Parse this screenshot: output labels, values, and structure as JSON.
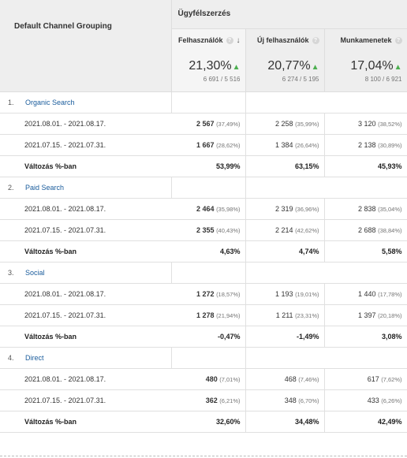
{
  "headers": {
    "dimension": "Default Channel Grouping",
    "group": "Ügyfélszerzés",
    "metrics": [
      "Felhasználók",
      "Új felhasználók",
      "Munkamenetek"
    ]
  },
  "summary": [
    {
      "pct": "21,30%",
      "detail": "6 691 / 5 516"
    },
    {
      "pct": "20,77%",
      "detail": "6 274 / 5 195"
    },
    {
      "pct": "17,04%",
      "detail": "8 100 / 6 921"
    }
  ],
  "groups": [
    {
      "num": "1.",
      "name": "Organic Search",
      "rows": [
        {
          "date": "2021.08.01. - 2021.08.17.",
          "m1": "2 567",
          "m1p": "(37,49%)",
          "m2": "2 258",
          "m2p": "(35,99%)",
          "m3": "3 120",
          "m3p": "(38,52%)"
        },
        {
          "date": "2021.07.15. - 2021.07.31.",
          "m1": "1 667",
          "m1p": "(28,62%)",
          "m2": "1 384",
          "m2p": "(26,64%)",
          "m3": "2 138",
          "m3p": "(30,89%)"
        }
      ],
      "change": {
        "label": "Változás %-ban",
        "m1": "53,99%",
        "m2": "63,15%",
        "m3": "45,93%"
      }
    },
    {
      "num": "2.",
      "name": "Paid Search",
      "rows": [
        {
          "date": "2021.08.01. - 2021.08.17.",
          "m1": "2 464",
          "m1p": "(35,98%)",
          "m2": "2 319",
          "m2p": "(36,96%)",
          "m3": "2 838",
          "m3p": "(35,04%)"
        },
        {
          "date": "2021.07.15. - 2021.07.31.",
          "m1": "2 355",
          "m1p": "(40,43%)",
          "m2": "2 214",
          "m2p": "(42,62%)",
          "m3": "2 688",
          "m3p": "(38,84%)"
        }
      ],
      "change": {
        "label": "Változás %-ban",
        "m1": "4,63%",
        "m2": "4,74%",
        "m3": "5,58%"
      }
    },
    {
      "num": "3.",
      "name": "Social",
      "rows": [
        {
          "date": "2021.08.01. - 2021.08.17.",
          "m1": "1 272",
          "m1p": "(18,57%)",
          "m2": "1 193",
          "m2p": "(19,01%)",
          "m3": "1 440",
          "m3p": "(17,78%)"
        },
        {
          "date": "2021.07.15. - 2021.07.31.",
          "m1": "1 278",
          "m1p": "(21,94%)",
          "m2": "1 211",
          "m2p": "(23,31%)",
          "m3": "1 397",
          "m3p": "(20,18%)"
        }
      ],
      "change": {
        "label": "Változás %-ban",
        "m1": "-0,47%",
        "m2": "-1,49%",
        "m3": "3,08%"
      }
    },
    {
      "num": "4.",
      "name": "Direct",
      "rows": [
        {
          "date": "2021.08.01. - 2021.08.17.",
          "m1": "480",
          "m1p": "(7,01%)",
          "m2": "468",
          "m2p": "(7,46%)",
          "m3": "617",
          "m3p": "(7,62%)"
        },
        {
          "date": "2021.07.15. - 2021.07.31.",
          "m1": "362",
          "m1p": "(6,21%)",
          "m2": "348",
          "m2p": "(6,70%)",
          "m3": "433",
          "m3p": "(6,26%)"
        }
      ],
      "change": {
        "label": "Változás %-ban",
        "m1": "32,60%",
        "m2": "34,48%",
        "m3": "42,49%"
      }
    }
  ],
  "colors": {
    "accent_link": "#1a5c9c",
    "up_arrow": "#4caf50",
    "header_bg": "#eeeeee"
  },
  "icons": {
    "help": "help-circle-icon",
    "sort": "arrow-down-icon",
    "trend_up": "triangle-up-icon"
  }
}
